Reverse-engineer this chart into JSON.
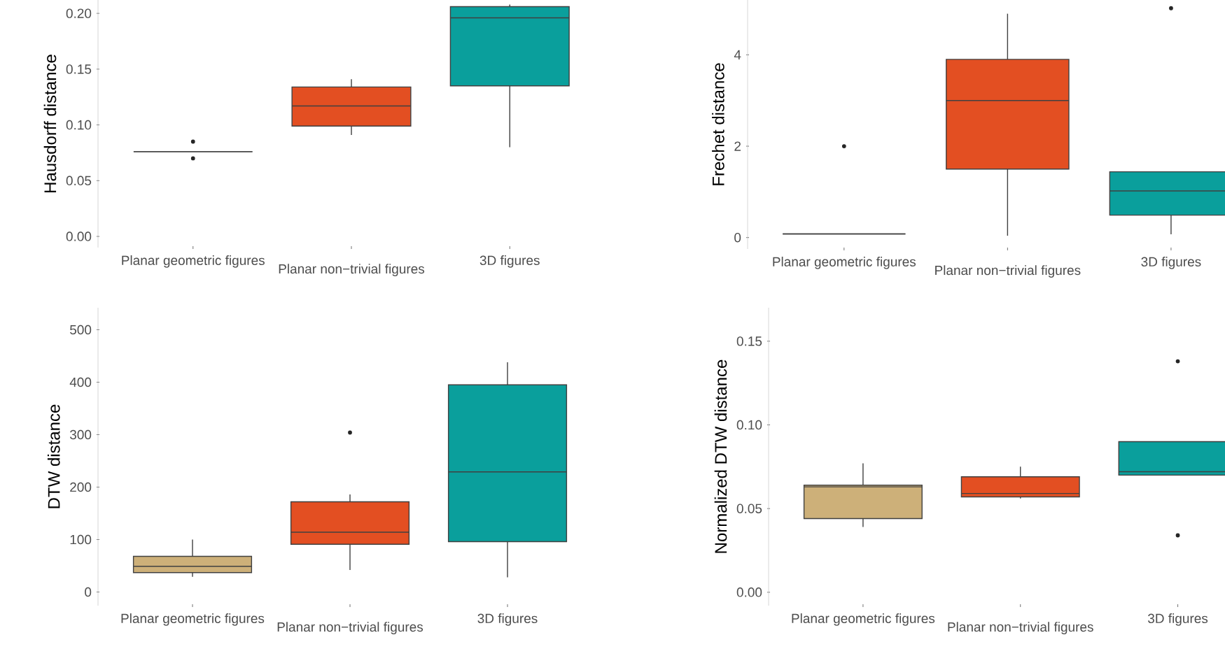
{
  "chart_data": [
    {
      "type": "box",
      "ylabel": "Hausdorff distance",
      "categories": [
        "Planar geometric figures",
        "Planar non−trivial figures",
        "3D figures"
      ],
      "colors": [
        "#404040",
        "#e34f22",
        "#0a9f9c"
      ],
      "ylim": [
        -0.01,
        0.212
      ],
      "yticks": [
        {
          "value": 0,
          "label": "0.00"
        },
        {
          "value": 0.05,
          "label": "0.05"
        },
        {
          "value": 0.1,
          "label": "0.10"
        },
        {
          "value": 0.15,
          "label": "0.15"
        },
        {
          "value": 0.2,
          "label": "0.20"
        }
      ],
      "boxes": [
        {
          "low": 0.076,
          "q1": 0.076,
          "median": 0.076,
          "q3": 0.076,
          "high": 0.076,
          "outliers": [
            0.085,
            0.07
          ]
        },
        {
          "low": 0.091,
          "q1": 0.099,
          "median": 0.117,
          "q3": 0.134,
          "high": 0.141
        },
        {
          "low": 0.08,
          "q1": 0.135,
          "median": 0.196,
          "q3": 0.206,
          "high": 0.208
        }
      ]
    },
    {
      "type": "box",
      "ylabel": "Frechet distance",
      "categories": [
        "Planar geometric figures",
        "Planar non−trivial figures",
        "3D figures"
      ],
      "colors": [
        "#404040",
        "#e34f22",
        "#0a9f9c"
      ],
      "ylim": [
        -0.25,
        5.2
      ],
      "yticks": [
        0,
        2,
        4
      ],
      "boxes": [
        {
          "low": 0.08,
          "q1": 0.08,
          "median": 0.08,
          "q3": 0.08,
          "high": 0.08,
          "outliers": [
            2.0
          ]
        },
        {
          "low": 0.04,
          "q1": 1.5,
          "median": 3.0,
          "q3": 3.9,
          "high": 4.9
        },
        {
          "low": 0.07,
          "q1": 0.49,
          "median": 1.02,
          "q3": 1.44,
          "high": 1.44,
          "outliers": [
            5.02
          ]
        }
      ]
    },
    {
      "type": "box",
      "ylabel": "DTW distance",
      "categories": [
        "Planar geometric figures",
        "Planar non−trivial figures",
        "3D figures"
      ],
      "colors": [
        "#cdb079",
        "#e34f22",
        "#0a9f9c"
      ],
      "ylim": [
        -26,
        542
      ],
      "yticks": [
        0,
        100,
        200,
        300,
        400,
        500
      ],
      "boxes": [
        {
          "low": 29,
          "q1": 37,
          "median": 49,
          "q3": 68,
          "high": 100
        },
        {
          "low": 42,
          "q1": 91,
          "median": 114,
          "q3": 172,
          "high": 186,
          "outliers": [
            304
          ]
        },
        {
          "low": 28,
          "q1": 96,
          "median": 229,
          "q3": 395,
          "high": 438
        }
      ]
    },
    {
      "type": "box",
      "ylabel": "Normalized DTW distance",
      "categories": [
        "Planar geometric figures",
        "Planar non−trivial figures",
        "3D figures"
      ],
      "colors": [
        "#cdb079",
        "#e34f22",
        "#0a9f9c"
      ],
      "ylim": [
        -0.008,
        0.17
      ],
      "yticks": [
        {
          "value": 0,
          "label": "0.00"
        },
        {
          "value": 0.05,
          "label": "0.05"
        },
        {
          "value": 0.1,
          "label": "0.10"
        },
        {
          "value": 0.15,
          "label": "0.15"
        }
      ],
      "boxes": [
        {
          "low": 0.039,
          "q1": 0.044,
          "median": 0.063,
          "q3": 0.064,
          "high": 0.077
        },
        {
          "low": 0.056,
          "q1": 0.057,
          "median": 0.059,
          "q3": 0.069,
          "high": 0.075
        },
        {
          "low": 0.07,
          "q1": 0.07,
          "median": 0.072,
          "q3": 0.09,
          "high": 0.09,
          "outliers": [
            0.138,
            0.034
          ]
        }
      ]
    }
  ]
}
